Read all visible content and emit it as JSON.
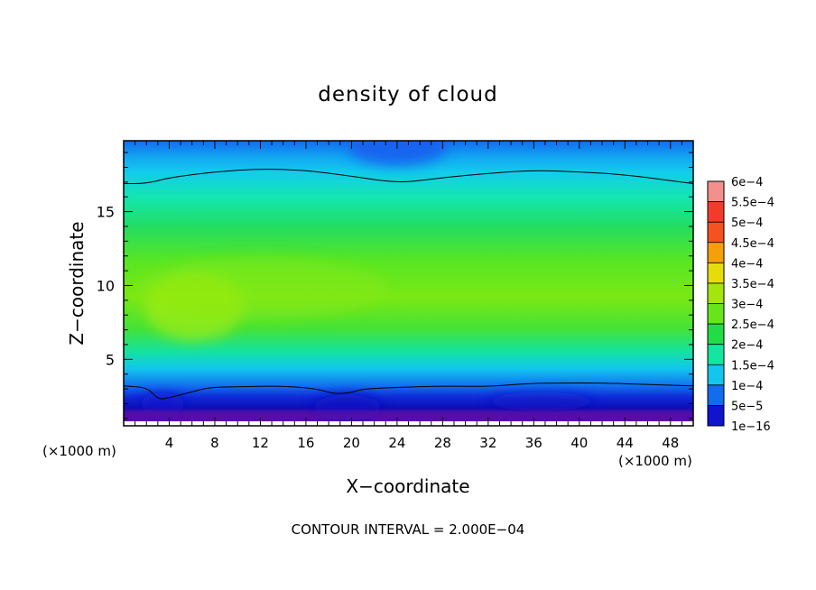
{
  "chart_data": {
    "type": "heatmap",
    "title": "density of cloud",
    "xlabel": "X−coordinate",
    "ylabel": "Z−coordinate",
    "x_unit_left": "(×1000 m)",
    "x_unit_right": "(×1000 m)",
    "xlim": [
      0,
      50
    ],
    "ylim": [
      0.5,
      19.8
    ],
    "x_ticks": [
      4,
      8,
      12,
      16,
      20,
      24,
      28,
      32,
      36,
      40,
      44,
      48
    ],
    "y_ticks": [
      5,
      10,
      15
    ],
    "footer": "CONTOUR INTERVAL = 2.000E−04",
    "colorbar": {
      "labels": [
        "6e−4",
        "5.5e−4",
        "5e−4",
        "4.5e−4",
        "4e−4",
        "3.5e−4",
        "3e−4",
        "2.5e−4",
        "2e−4",
        "1.5e−4",
        "1e−4",
        "5e−5",
        "1e−16"
      ],
      "levels": [
        0.0006,
        0.00055,
        0.0005,
        0.00045,
        0.0004,
        0.00035,
        0.0003,
        0.00025,
        0.0002,
        0.00015,
        0.0001,
        5e-05,
        1e-16
      ],
      "colors": [
        "#f4908c",
        "#f23c2a",
        "#f4521e",
        "#f5a00a",
        "#e6dc0a",
        "#a4e60a",
        "#66e61a",
        "#22dc46",
        "#12e6a0",
        "#12c6ee",
        "#126cf0",
        "#1014cc",
        "#6a06a8"
      ]
    },
    "contour_lines": [
      {
        "level": 0.0002,
        "points": [
          [
            0,
            16.9
          ],
          [
            2,
            16.9
          ],
          [
            4,
            17.3
          ],
          [
            8,
            17.7
          ],
          [
            12,
            17.9
          ],
          [
            16,
            17.8
          ],
          [
            20,
            17.4
          ],
          [
            23,
            17.05
          ],
          [
            25,
            17.0
          ],
          [
            28,
            17.3
          ],
          [
            32,
            17.6
          ],
          [
            36,
            17.8
          ],
          [
            40,
            17.7
          ],
          [
            44,
            17.5
          ],
          [
            48,
            17.1
          ],
          [
            50,
            16.9
          ]
        ]
      },
      {
        "level": 0.0001,
        "points": [
          [
            0,
            3.2
          ],
          [
            2,
            3.1
          ],
          [
            2.8,
            2.5
          ],
          [
            3.2,
            2.3
          ],
          [
            4,
            2.4
          ],
          [
            6,
            2.8
          ],
          [
            7.5,
            3.1
          ],
          [
            10,
            3.15
          ],
          [
            14,
            3.2
          ],
          [
            17,
            3.0
          ],
          [
            18.5,
            2.65
          ],
          [
            20,
            2.75
          ],
          [
            21,
            3.0
          ],
          [
            24,
            3.1
          ],
          [
            28,
            3.2
          ],
          [
            32,
            3.15
          ],
          [
            35,
            3.35
          ],
          [
            38,
            3.4
          ],
          [
            42,
            3.4
          ],
          [
            46,
            3.3
          ],
          [
            50,
            3.2
          ]
        ]
      }
    ]
  }
}
